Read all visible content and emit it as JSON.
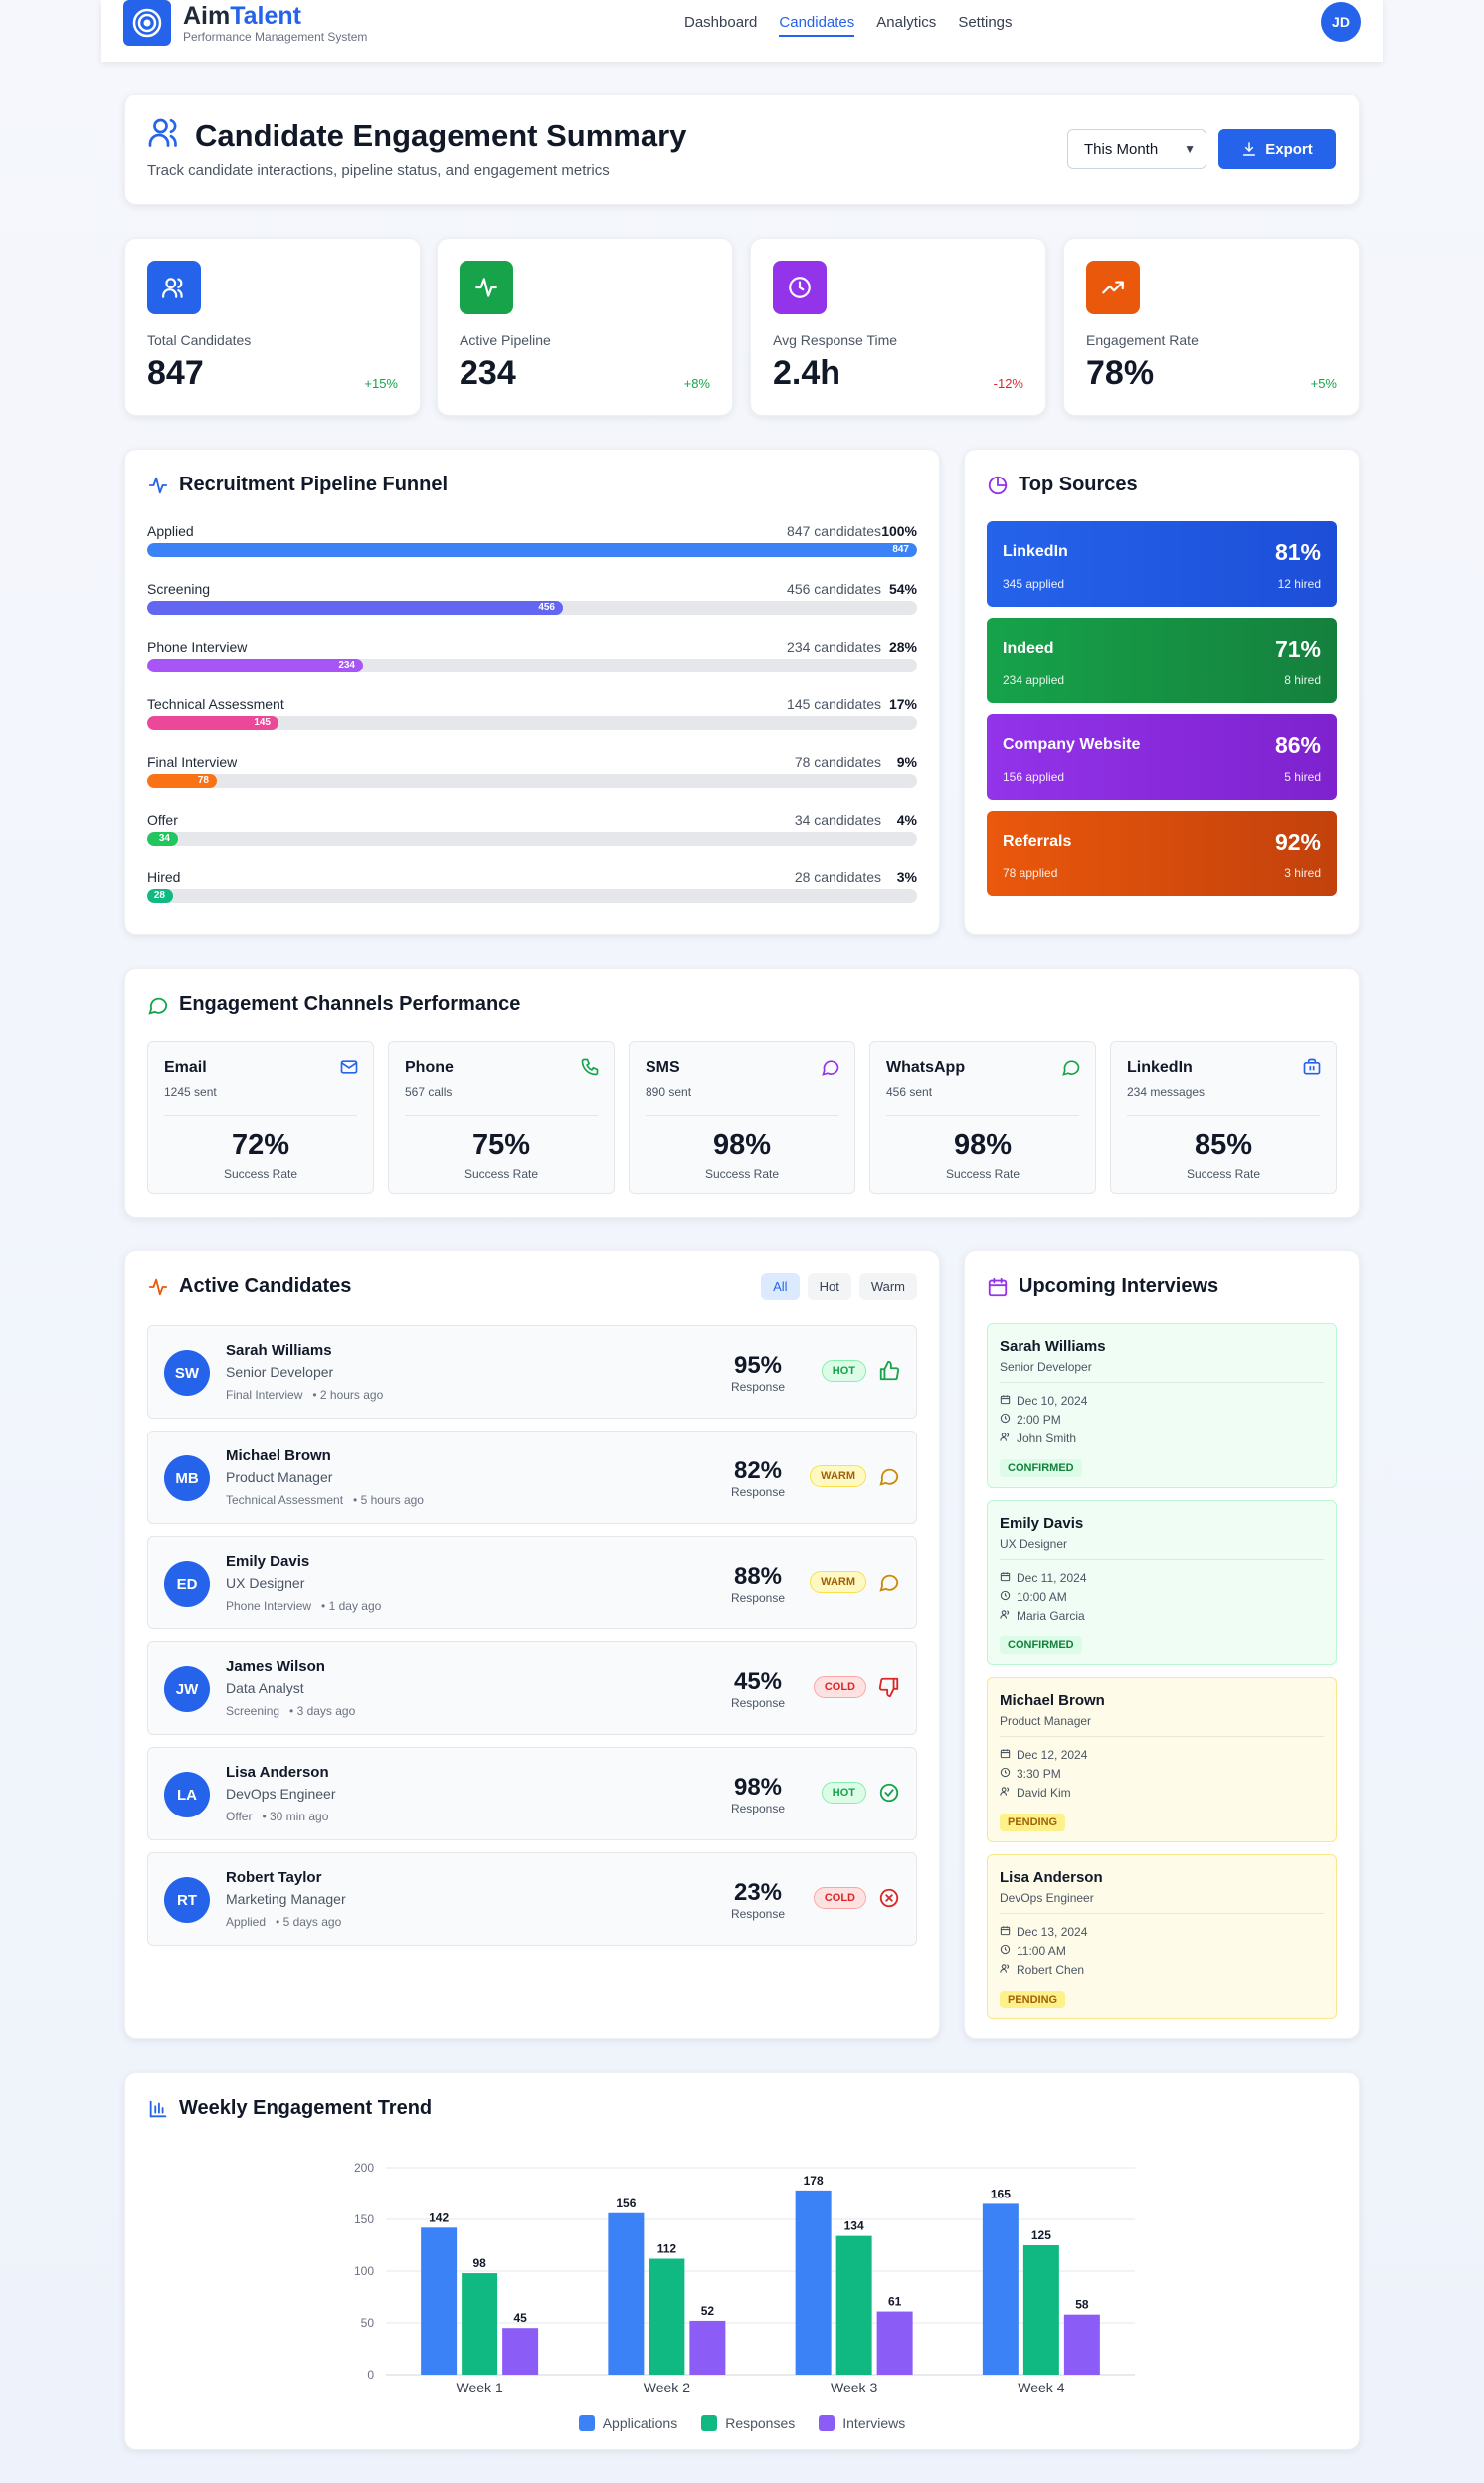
{
  "brand": {
    "name_1": "Aim",
    "name_2": "Talent",
    "tagline": "Performance Management System"
  },
  "nav": [
    "Dashboard",
    "Candidates",
    "Analytics",
    "Settings"
  ],
  "user": {
    "initials": "JD"
  },
  "header": {
    "title": "Candidate Engagement Summary",
    "subtitle": "Track candidate interactions, pipeline status, and engagement metrics",
    "period": "This Month",
    "export_label": "Export"
  },
  "stats": [
    {
      "label": "Total Candidates",
      "value": "847",
      "change": "+15%",
      "icon": "users-icon",
      "color": "#2563eb"
    },
    {
      "label": "Active Pipeline",
      "value": "234",
      "change": "+8%",
      "icon": "activity-icon",
      "color": "#16a34a"
    },
    {
      "label": "Avg Response Time",
      "value": "2.4h",
      "change": "-12%",
      "icon": "clock-icon",
      "color": "#9333ea"
    },
    {
      "label": "Engagement Rate",
      "value": "78%",
      "change": "+5%",
      "icon": "trending-up-icon",
      "color": "#ea580c"
    }
  ],
  "funnel": {
    "title": "Recruitment Pipeline Funnel",
    "stages": [
      {
        "label": "Applied",
        "count": "847 candidates",
        "percent": "100%",
        "value": "847",
        "fraction": 1.0,
        "color": "#3b82f6"
      },
      {
        "label": "Screening",
        "count": "456 candidates",
        "percent": "54%",
        "value": "456",
        "fraction": 0.54,
        "color": "#6366f1"
      },
      {
        "label": "Phone Interview",
        "count": "234 candidates",
        "percent": "28%",
        "value": "234",
        "fraction": 0.28,
        "color": "#a855f7"
      },
      {
        "label": "Technical Assessment",
        "count": "145 candidates",
        "percent": "17%",
        "value": "145",
        "fraction": 0.17,
        "color": "#ec4899"
      },
      {
        "label": "Final Interview",
        "count": "78 candidates",
        "percent": "9%",
        "value": "78",
        "fraction": 0.09,
        "color": "#f97316"
      },
      {
        "label": "Offer",
        "count": "34 candidates",
        "percent": "4%",
        "value": "34",
        "fraction": 0.04,
        "color": "#22c55e"
      },
      {
        "label": "Hired",
        "count": "28 candidates",
        "percent": "3%",
        "value": "28",
        "fraction": 0.03,
        "color": "#10b981"
      }
    ]
  },
  "sources": {
    "title": "Top Sources",
    "items": [
      {
        "name": "LinkedIn",
        "percent": "81%",
        "applied": "345 applied",
        "hired": "12 hired",
        "color": "#1d4ed8"
      },
      {
        "name": "Indeed",
        "percent": "71%",
        "applied": "234 applied",
        "hired": "8 hired",
        "color": "#16a34a"
      },
      {
        "name": "Company Website",
        "percent": "86%",
        "applied": "156 applied",
        "hired": "5 hired",
        "color": "#9333ea"
      },
      {
        "name": "Referrals",
        "percent": "92%",
        "applied": "78 applied",
        "hired": "3 hired",
        "color": "#ea580c"
      }
    ]
  },
  "channels": {
    "title": "Engagement Channels Performance",
    "items": [
      {
        "name": "Email",
        "sent": "1245 sent",
        "rate": "72%",
        "rate_label": "Success Rate",
        "icon": "mail-icon",
        "color": "#2563eb"
      },
      {
        "name": "Phone",
        "sent": "567 calls",
        "rate": "75%",
        "rate_label": "Success Rate",
        "icon": "phone-icon",
        "color": "#16a34a"
      },
      {
        "name": "SMS",
        "sent": "890 sent",
        "rate": "98%",
        "rate_label": "Success Rate",
        "icon": "message-icon",
        "color": "#9333ea"
      },
      {
        "name": "WhatsApp",
        "sent": "456 sent",
        "rate": "98%",
        "rate_label": "Success Rate",
        "icon": "chat-icon",
        "color": "#16a34a"
      },
      {
        "name": "LinkedIn",
        "sent": "234 messages",
        "rate": "85%",
        "rate_label": "Success Rate",
        "icon": "briefcase-icon",
        "color": "#2563eb"
      }
    ]
  },
  "candidates": {
    "title": "Active Candidates",
    "filters": [
      "All",
      "Hot",
      "Warm"
    ],
    "items": [
      {
        "initials": "SW",
        "name": "Sarah Williams",
        "role": "Senior Developer",
        "meta": "Final Interview   • 2 hours ago",
        "response": "95%",
        "response_label": "Response",
        "status": "HOT",
        "action_icon": "thumbs-up-icon"
      },
      {
        "initials": "MB",
        "name": "Michael Brown",
        "role": "Product Manager",
        "meta": "Technical Assessment   • 5 hours ago",
        "response": "82%",
        "response_label": "Response",
        "status": "WARM",
        "action_icon": "message-icon"
      },
      {
        "initials": "ED",
        "name": "Emily Davis",
        "role": "UX Designer",
        "meta": "Phone Interview   • 1 day ago",
        "response": "88%",
        "response_label": "Response",
        "status": "WARM",
        "action_icon": "message-icon"
      },
      {
        "initials": "JW",
        "name": "James Wilson",
        "role": "Data Analyst",
        "meta": "Screening   • 3 days ago",
        "response": "45%",
        "response_label": "Response",
        "status": "COLD",
        "action_icon": "thumbs-down-icon"
      },
      {
        "initials": "LA",
        "name": "Lisa Anderson",
        "role": "DevOps Engineer",
        "meta": "Offer   • 30 min ago",
        "response": "98%",
        "response_label": "Response",
        "status": "HOT",
        "action_icon": "check-circle-icon"
      },
      {
        "initials": "RT",
        "name": "Robert Taylor",
        "role": "Marketing Manager",
        "meta": "Applied   • 5 days ago",
        "response": "23%",
        "response_label": "Response",
        "status": "COLD",
        "action_icon": "x-circle-icon"
      }
    ]
  },
  "interviews": {
    "title": "Upcoming Interviews",
    "items": [
      {
        "name": "Sarah Williams",
        "role": "Senior Developer",
        "date": "Dec 10, 2024",
        "time": "2:00 PM",
        "interviewer": "John Smith",
        "status": "CONFIRMED"
      },
      {
        "name": "Emily Davis",
        "role": "UX Designer",
        "date": "Dec 11, 2024",
        "time": "10:00 AM",
        "interviewer": "Maria Garcia",
        "status": "CONFIRMED"
      },
      {
        "name": "Michael Brown",
        "role": "Product Manager",
        "date": "Dec 12, 2024",
        "time": "3:30 PM",
        "interviewer": "David Kim",
        "status": "PENDING"
      },
      {
        "name": "Lisa Anderson",
        "role": "DevOps Engineer",
        "date": "Dec 13, 2024",
        "time": "11:00 AM",
        "interviewer": "Robert Chen",
        "status": "PENDING"
      }
    ]
  },
  "trend_title": "Weekly Engagement Trend",
  "chart_data": {
    "type": "bar",
    "categories": [
      "Week 1",
      "Week 2",
      "Week 3",
      "Week 4"
    ],
    "series": [
      {
        "name": "Applications",
        "values": [
          142,
          156,
          178,
          165
        ],
        "color": "#3b82f6"
      },
      {
        "name": "Responses",
        "values": [
          98,
          112,
          134,
          125
        ],
        "color": "#10b981"
      },
      {
        "name": "Interviews",
        "values": [
          45,
          52,
          61,
          58
        ],
        "color": "#8b5cf6"
      }
    ],
    "ylim": [
      0,
      200
    ],
    "yticks": [
      0,
      50,
      100,
      150,
      200
    ],
    "grid": true,
    "legend": "bottom"
  }
}
